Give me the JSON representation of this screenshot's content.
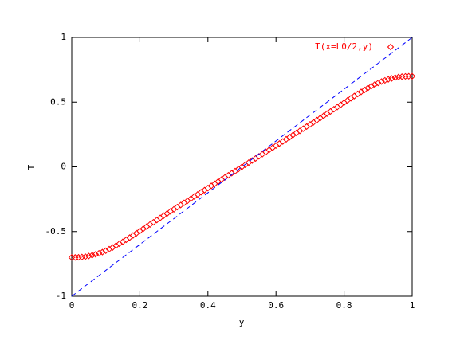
{
  "chart_data": {
    "type": "scatter",
    "xlabel": "y",
    "ylabel": "T",
    "xlim": [
      0,
      1
    ],
    "ylim": [
      -1,
      1
    ],
    "xticks": [
      0,
      0.2,
      0.4,
      0.6,
      0.8,
      1
    ],
    "yticks": [
      -1,
      -0.5,
      0,
      0.5,
      1
    ],
    "legend": "upper right",
    "series": [
      {
        "name": "T(x=L0/2,y)",
        "color": "#ff0000",
        "marker": "diamond",
        "x": [
          0,
          0.01,
          0.02,
          0.03,
          0.04,
          0.05,
          0.06,
          0.07,
          0.08,
          0.09,
          0.1,
          0.11,
          0.12,
          0.13,
          0.14,
          0.15,
          0.16,
          0.17,
          0.18,
          0.19,
          0.2,
          0.21,
          0.22,
          0.23,
          0.24,
          0.25,
          0.26,
          0.27,
          0.28,
          0.29,
          0.3,
          0.31,
          0.32,
          0.33,
          0.34,
          0.35,
          0.36,
          0.37,
          0.38,
          0.39,
          0.4,
          0.41,
          0.42,
          0.43,
          0.44,
          0.45,
          0.46,
          0.47,
          0.48,
          0.49,
          0.5,
          0.51,
          0.52,
          0.53,
          0.54,
          0.55,
          0.56,
          0.57,
          0.58,
          0.59,
          0.6,
          0.61,
          0.62,
          0.63,
          0.64,
          0.65,
          0.66,
          0.67,
          0.68,
          0.69,
          0.7,
          0.71,
          0.72,
          0.73,
          0.74,
          0.75,
          0.76,
          0.77,
          0.78,
          0.79,
          0.8,
          0.81,
          0.82,
          0.83,
          0.84,
          0.85,
          0.86,
          0.87,
          0.88,
          0.89,
          0.9,
          0.91,
          0.92,
          0.93,
          0.94,
          0.95,
          0.96,
          0.97,
          0.98,
          0.99,
          1
        ],
        "values": [
          -0.7,
          -0.7,
          -0.699,
          -0.697,
          -0.694,
          -0.689,
          -0.683,
          -0.676,
          -0.668,
          -0.659,
          -0.648,
          -0.636,
          -0.623,
          -0.609,
          -0.594,
          -0.579,
          -0.563,
          -0.547,
          -0.53,
          -0.513,
          -0.496,
          -0.479,
          -0.462,
          -0.445,
          -0.428,
          -0.411,
          -0.394,
          -0.377,
          -0.361,
          -0.344,
          -0.328,
          -0.311,
          -0.295,
          -0.278,
          -0.262,
          -0.246,
          -0.229,
          -0.213,
          -0.196,
          -0.18,
          -0.164,
          -0.147,
          -0.131,
          -0.114,
          -0.098,
          -0.081,
          -0.065,
          -0.049,
          -0.033,
          -0.016,
          0,
          0.016,
          0.033,
          0.049,
          0.065,
          0.081,
          0.098,
          0.114,
          0.131,
          0.147,
          0.164,
          0.18,
          0.196,
          0.213,
          0.229,
          0.246,
          0.262,
          0.278,
          0.295,
          0.311,
          0.328,
          0.344,
          0.361,
          0.377,
          0.394,
          0.411,
          0.428,
          0.445,
          0.462,
          0.479,
          0.496,
          0.513,
          0.53,
          0.547,
          0.563,
          0.579,
          0.594,
          0.609,
          0.623,
          0.636,
          0.648,
          0.659,
          0.668,
          0.676,
          0.683,
          0.689,
          0.694,
          0.697,
          0.699,
          0.7,
          0.7
        ]
      },
      {
        "color": "#0000ff",
        "style": "dashed",
        "x": [
          0,
          1
        ],
        "values": [
          -1,
          1
        ]
      }
    ]
  }
}
